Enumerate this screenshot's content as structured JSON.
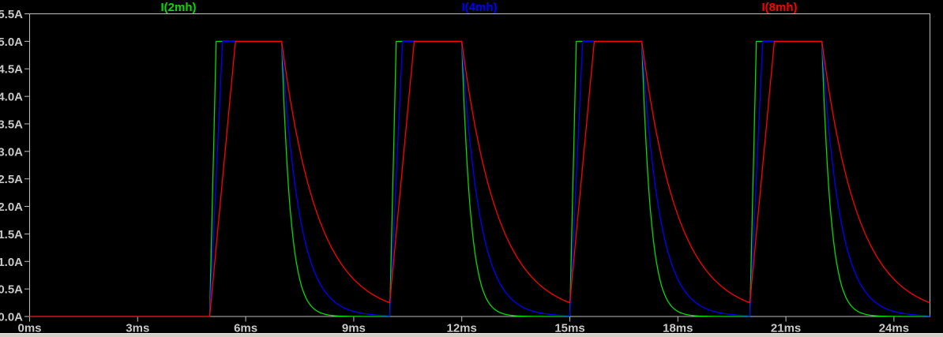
{
  "chart_data": {
    "type": "line",
    "title": "",
    "legend_position": "top",
    "grid": "off",
    "legend_labels": [
      "I(2mh)",
      "I(4mh)",
      "I(8mh)"
    ],
    "x_axis": {
      "unit": "ms",
      "min": 0,
      "max": 25,
      "tick_step": 3,
      "tick_labels": [
        "0ms",
        "3ms",
        "6ms",
        "9ms",
        "12ms",
        "15ms",
        "18ms",
        "21ms",
        "24ms"
      ]
    },
    "y_axis": {
      "unit": "A",
      "min": 0,
      "max": 5.5,
      "tick_step": 0.5,
      "tick_labels": [
        "0.0A",
        "0.5A",
        "1.0A",
        "1.5A",
        "2.0A",
        "2.5A",
        "3.0A",
        "3.5A",
        "4.0A",
        "4.5A",
        "5.0A",
        "5.5A"
      ]
    },
    "drive_pulse": {
      "amplitude_A": 5.0,
      "first_rise_ms": 5.0,
      "on_time_ms": 2.0,
      "period_ms": 5.0,
      "pulse_count": 4
    },
    "series": [
      {
        "name": "I(2mh)",
        "color": "#00DC00",
        "rise_slope_A_per_ms": 28,
        "decay_tau_ms": 0.25,
        "peak_A": 5.0,
        "initial_A": 0.0
      },
      {
        "name": "I(4mh)",
        "color": "#0000FF",
        "rise_slope_A_per_ms": 14,
        "decay_tau_ms": 0.5,
        "peak_A": 5.0,
        "initial_A": 0.0
      },
      {
        "name": "I(8mh)",
        "color": "#FF0000",
        "rise_slope_A_per_ms": 7,
        "decay_tau_ms": 1.0,
        "peak_A": 5.0,
        "initial_A": 0.0
      }
    ]
  },
  "colors": {
    "background": "#000000",
    "plot_border": "#BEBEBE",
    "tick_label": "#C8C8C8",
    "window_bottom_strip": "#D2CFC7"
  }
}
